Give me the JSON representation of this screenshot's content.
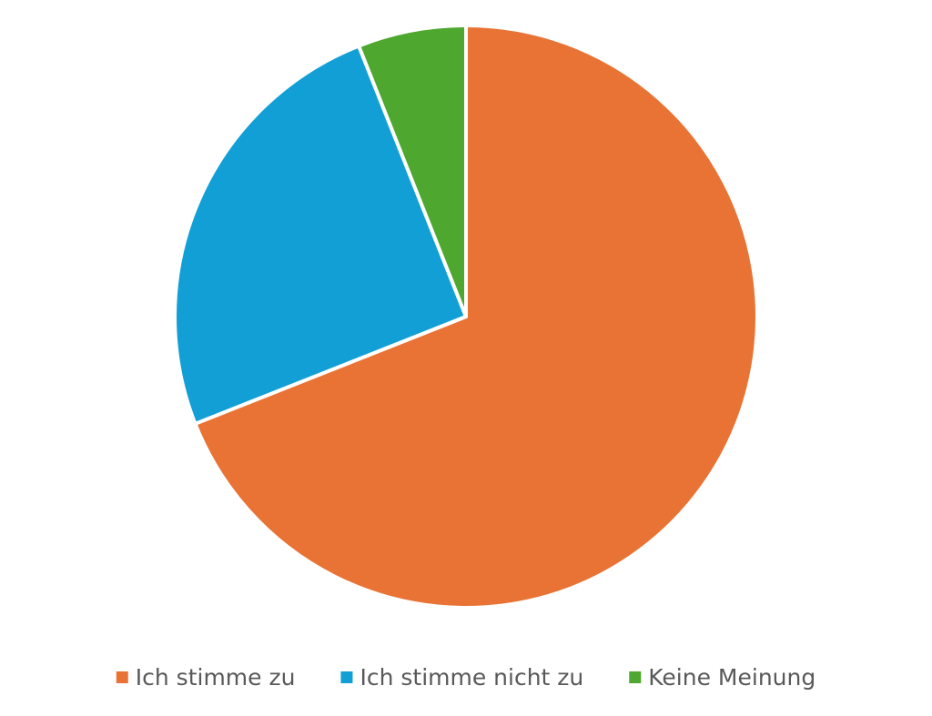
{
  "chart_data": {
    "type": "pie",
    "categories": [
      "Ich stimme zu",
      "Ich stimme nicht zu",
      "Keine Meinung"
    ],
    "values": [
      69,
      25,
      6
    ],
    "colors": [
      "#e97334",
      "#129fd6",
      "#4ea72e"
    ],
    "legend": "bottom"
  }
}
